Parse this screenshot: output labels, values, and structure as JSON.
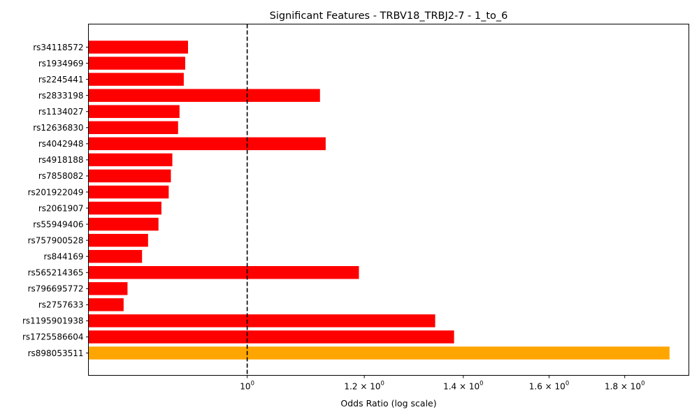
{
  "chart_data": {
    "type": "bar",
    "orientation": "horizontal",
    "title": "Significant Features - TRBV18_TRBJ2-7 - 1_to_6",
    "xlabel": "Odds Ratio (log scale)",
    "ylabel": "",
    "xscale": "log",
    "xlim": [
      0.781,
      1.989
    ],
    "xticks": [
      {
        "value": 1.0,
        "label": "10",
        "sup": "0",
        "prefix": ""
      },
      {
        "value": 1.2,
        "label": "10",
        "sup": "0",
        "prefix": "1.2 × "
      },
      {
        "value": 1.4,
        "label": "10",
        "sup": "0",
        "prefix": "1.4 × "
      },
      {
        "value": 1.6,
        "label": "10",
        "sup": "0",
        "prefix": "1.6 × "
      },
      {
        "value": 1.8,
        "label": "10",
        "sup": "0",
        "prefix": "1.8 × "
      }
    ],
    "reference_line": {
      "value": 1.0,
      "style": "dashed",
      "color": "#000000"
    },
    "grid": false,
    "categories": [
      "rs34118572",
      "rs1934969",
      "rs2245441",
      "rs2833198",
      "rs1134027",
      "rs12636830",
      "rs4042948",
      "rs4918188",
      "rs7858082",
      "rs201922049",
      "rs2061907",
      "rs55949406",
      "rs757900528",
      "rs844169",
      "rs565214365",
      "rs796695772",
      "rs2757633",
      "rs1195901938",
      "rs1725586604",
      "rs898053511"
    ],
    "values": [
      0.912,
      0.908,
      0.906,
      1.12,
      0.9,
      0.898,
      1.13,
      0.89,
      0.888,
      0.885,
      0.875,
      0.871,
      0.857,
      0.849,
      1.19,
      0.83,
      0.825,
      1.34,
      1.38,
      1.93
    ],
    "colors": [
      "#ff0000",
      "#ff0000",
      "#ff0000",
      "#ff0000",
      "#ff0000",
      "#ff0000",
      "#ff0000",
      "#ff0000",
      "#ff0000",
      "#ff0000",
      "#ff0000",
      "#ff0000",
      "#ff0000",
      "#ff0000",
      "#ff0000",
      "#ff0000",
      "#ff0000",
      "#ff0000",
      "#ff0000",
      "#ffa500"
    ]
  }
}
